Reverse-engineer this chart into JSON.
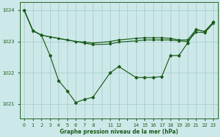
{
  "bg_color": "#cce8e8",
  "grid_color": "#aacccc",
  "line_color": "#1a5c1a",
  "xlabel": "Graphe pression niveau de la mer (hPa)",
  "ylim": [
    1020.55,
    1024.25
  ],
  "yticks": [
    1021,
    1022,
    1023,
    1024
  ],
  "xtick_labels": [
    "0",
    "1",
    "2",
    "3",
    "4",
    "5",
    "6",
    "7",
    "8",
    "",
    "11",
    "12",
    "",
    "14",
    "15",
    "16",
    "17",
    "18",
    "19",
    "20",
    "21",
    "22",
    "23"
  ],
  "n_xpoints": 23,
  "series": [
    {
      "positions": [
        0,
        1,
        2,
        3,
        4,
        5,
        6,
        7,
        8,
        10,
        11,
        13,
        14,
        15,
        16,
        17,
        18,
        19,
        20,
        21,
        22
      ],
      "y": [
        1024.0,
        1023.35,
        1023.2,
        1023.15,
        1023.1,
        1023.05,
        1023.0,
        1022.98,
        1022.95,
        1023.0,
        1023.05,
        1023.1,
        1023.12,
        1023.12,
        1023.12,
        1023.1,
        1023.05,
        1023.05,
        1023.38,
        1023.32,
        1023.62
      ],
      "marker": "s"
    },
    {
      "positions": [
        0,
        1,
        2,
        3,
        4,
        5,
        6,
        7,
        8,
        10,
        11,
        13,
        14,
        15,
        16,
        17,
        18,
        19,
        20,
        21,
        22
      ],
      "y": [
        1024.0,
        1023.35,
        1023.2,
        1023.15,
        1023.1,
        1023.05,
        1023.0,
        1022.95,
        1022.9,
        1022.92,
        1022.98,
        1023.02,
        1023.05,
        1023.05,
        1023.05,
        1023.05,
        1023.02,
        1023.0,
        1023.3,
        1023.28,
        1023.58
      ],
      "marker": "s"
    },
    {
      "positions": [
        0,
        1,
        2,
        3,
        4,
        5,
        6,
        7,
        8,
        10,
        11,
        13,
        14,
        15,
        16,
        17,
        18,
        19,
        20,
        21,
        22
      ],
      "y": [
        1024.0,
        1023.35,
        1023.2,
        1022.55,
        1021.75,
        1021.42,
        1021.05,
        1021.15,
        1021.22,
        1022.0,
        1022.2,
        1021.85,
        1021.85,
        1021.85,
        1021.88,
        1022.55,
        1022.55,
        1022.95,
        1023.38,
        1023.32,
        1023.62
      ],
      "marker": "D"
    }
  ]
}
